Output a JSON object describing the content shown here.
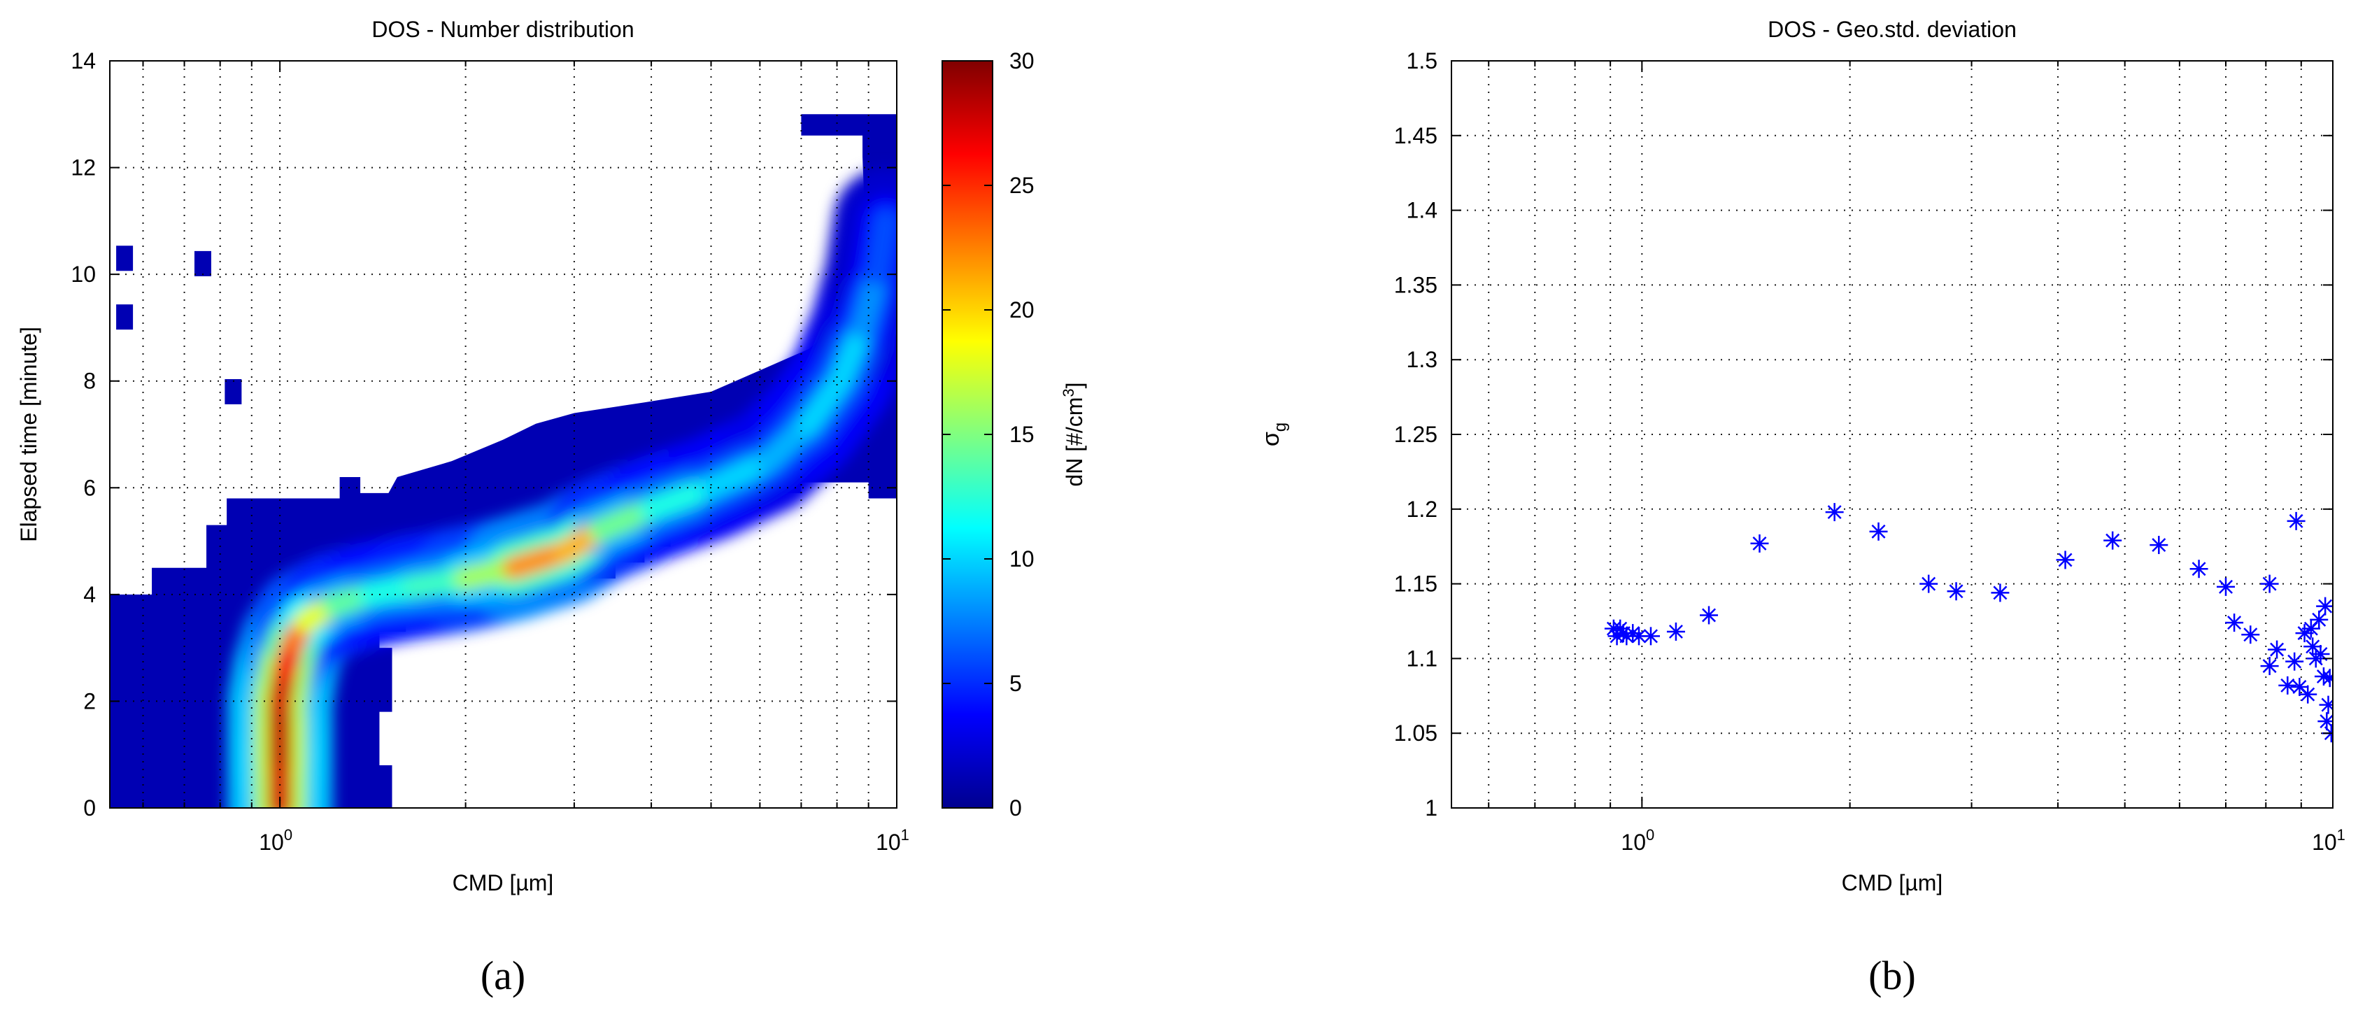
{
  "chart_data": [
    {
      "type": "heatmap",
      "title": "DOS - Number distribution",
      "xlabel": "CMD [µm]",
      "ylabel": "Elapsed time [minute]",
      "xscale": "log",
      "xlim": [
        0.53,
        10
      ],
      "ylim": [
        0,
        14
      ],
      "x_ticks": [
        {
          "value": 1,
          "base": "10",
          "exp": "0"
        },
        {
          "value": 10,
          "base": "10",
          "exp": "1"
        }
      ],
      "y_ticks": [
        0,
        2,
        4,
        6,
        8,
        10,
        12,
        14
      ],
      "grid": true,
      "colorbar": {
        "label_main": "dN [#/cm",
        "label_sup": "3",
        "label_end": "]",
        "min": 0,
        "max": 30,
        "ticks": [
          0,
          5,
          10,
          15,
          20,
          25,
          30
        ],
        "colormap": "jet",
        "colors": [
          "#00008f",
          "#0000ff",
          "#0080ff",
          "#00ffff",
          "#80ff80",
          "#ffff00",
          "#ff8000",
          "#ff0000",
          "#800000"
        ]
      },
      "ridge": {
        "description_values": "peak CMD [µm] vs elapsed time [minute]",
        "x": [
          1.0,
          1.0,
          1.0,
          1.02,
          1.05,
          1.1,
          1.22,
          1.4,
          1.65,
          2.0,
          2.4,
          2.9,
          3.3,
          4.0,
          5.0,
          6.2,
          7.2,
          8.1,
          8.8,
          9.3,
          9.6
        ],
        "y": [
          0.0,
          1.0,
          2.0,
          2.6,
          3.1,
          3.5,
          3.8,
          4.0,
          4.15,
          4.3,
          4.5,
          4.8,
          5.2,
          5.6,
          6.0,
          6.5,
          7.2,
          8.0,
          9.0,
          10.0,
          11.0
        ],
        "peak_value": [
          27,
          28,
          28,
          27,
          26,
          20,
          16,
          12,
          12,
          14,
          18,
          26,
          16,
          13,
          11,
          9,
          9,
          11,
          9,
          7,
          5
        ]
      },
      "isolated_cells": [
        {
          "x": 0.56,
          "y": 10.3
        },
        {
          "x": 0.56,
          "y": 9.2
        },
        {
          "x": 0.75,
          "y": 10.2
        },
        {
          "x": 0.84,
          "y": 7.8
        }
      ],
      "caption": "(a)"
    },
    {
      "type": "scatter",
      "title": "DOS - Geo.std. deviation",
      "xlabel": "CMD [µm]",
      "ylabel_main": "σ",
      "ylabel_sub": "g",
      "xscale": "log",
      "xlim": [
        0.53,
        10
      ],
      "ylim": [
        1,
        1.5
      ],
      "x_ticks": [
        {
          "value": 1,
          "base": "10",
          "exp": "0"
        },
        {
          "value": 10,
          "base": "10",
          "exp": "1"
        }
      ],
      "y_ticks": [
        "1",
        "1.05",
        "1.1",
        "1.15",
        "1.2",
        "1.25",
        "1.3",
        "1.35",
        "1.4",
        "1.45",
        "1.5"
      ],
      "grid": true,
      "marker": "*",
      "color": "#0000ff",
      "points": [
        {
          "x": 0.91,
          "y": 1.12
        },
        {
          "x": 0.92,
          "y": 1.115
        },
        {
          "x": 0.93,
          "y": 1.12
        },
        {
          "x": 0.94,
          "y": 1.117
        },
        {
          "x": 0.95,
          "y": 1.115
        },
        {
          "x": 0.97,
          "y": 1.117
        },
        {
          "x": 0.99,
          "y": 1.115
        },
        {
          "x": 1.03,
          "y": 1.115
        },
        {
          "x": 1.12,
          "y": 1.118
        },
        {
          "x": 1.25,
          "y": 1.129
        },
        {
          "x": 1.48,
          "y": 1.177
        },
        {
          "x": 1.9,
          "y": 1.198
        },
        {
          "x": 2.2,
          "y": 1.185
        },
        {
          "x": 2.6,
          "y": 1.15
        },
        {
          "x": 2.85,
          "y": 1.145
        },
        {
          "x": 3.3,
          "y": 1.144
        },
        {
          "x": 4.1,
          "y": 1.166
        },
        {
          "x": 4.8,
          "y": 1.179
        },
        {
          "x": 5.6,
          "y": 1.176
        },
        {
          "x": 6.4,
          "y": 1.16
        },
        {
          "x": 7.0,
          "y": 1.148
        },
        {
          "x": 7.2,
          "y": 1.124
        },
        {
          "x": 7.6,
          "y": 1.116
        },
        {
          "x": 8.1,
          "y": 1.15
        },
        {
          "x": 8.1,
          "y": 1.095
        },
        {
          "x": 8.3,
          "y": 1.106
        },
        {
          "x": 8.6,
          "y": 1.082
        },
        {
          "x": 8.8,
          "y": 1.098
        },
        {
          "x": 8.85,
          "y": 1.192
        },
        {
          "x": 8.95,
          "y": 1.081
        },
        {
          "x": 9.1,
          "y": 1.117
        },
        {
          "x": 9.2,
          "y": 1.076
        },
        {
          "x": 9.3,
          "y": 1.12
        },
        {
          "x": 9.35,
          "y": 1.108
        },
        {
          "x": 9.45,
          "y": 1.1
        },
        {
          "x": 9.55,
          "y": 1.126
        },
        {
          "x": 9.6,
          "y": 1.103
        },
        {
          "x": 9.7,
          "y": 1.088
        },
        {
          "x": 9.75,
          "y": 1.135
        },
        {
          "x": 9.8,
          "y": 1.058
        },
        {
          "x": 9.85,
          "y": 1.069
        },
        {
          "x": 9.9,
          "y": 1.087
        },
        {
          "x": 9.95,
          "y": 1.05
        }
      ],
      "caption": "(b)"
    }
  ]
}
